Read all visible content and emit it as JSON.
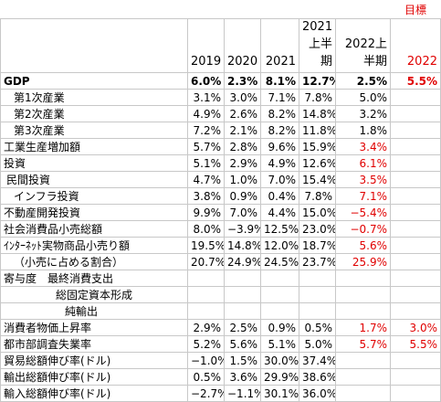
{
  "table": {
    "target_label": "目標",
    "columns": [
      "2019",
      "2020",
      "2021",
      "2021上半期",
      "2022上半期",
      "2022"
    ],
    "rows": [
      [
        "GDP",
        "6.0%",
        "2.3%",
        "8.1%",
        "12.7%",
        "2.5%",
        "5.5%"
      ],
      [
        "第1次産業",
        "3.1%",
        "3.0%",
        "7.1%",
        "7.8%",
        "5.0%",
        null
      ],
      [
        "第2次産業",
        "4.9%",
        "2.6%",
        "8.2%",
        "14.8%",
        "3.2%",
        null
      ],
      [
        "第3次産業",
        "7.2%",
        "2.1%",
        "8.2%",
        "11.8%",
        "1.8%",
        null
      ],
      [
        "工業生産増加額",
        "5.7%",
        "2.8%",
        "9.6%",
        "15.9%",
        "3.4%",
        null
      ],
      [
        "投資",
        "5.1%",
        "2.9%",
        "4.9%",
        "12.6%",
        "6.1%",
        null
      ],
      [
        "民間投資",
        "4.7%",
        "1.0%",
        "7.0%",
        "15.4%",
        "3.5%",
        null
      ],
      [
        "インフラ投資",
        "3.8%",
        "0.9%",
        "0.4%",
        "7.8%",
        "7.1%",
        null
      ],
      [
        "不動産開発投資",
        "9.9%",
        "7.0%",
        "4.4%",
        "15.0%",
        "−5.4%",
        null
      ],
      [
        "社会消費品小売総額",
        "8.0%",
        "−3.9%",
        "12.5%",
        "23.0%",
        "−0.7%",
        null
      ],
      [
        "ｲﾝﾀｰﾈｯﾄ実物商品小売り額",
        "19.5%",
        "14.8%",
        "12.0%",
        "18.7%",
        "5.6%",
        null
      ],
      [
        "（小売に占める割合）",
        "20.7%",
        "24.9%",
        "24.5%",
        "23.7%",
        "25.9%",
        null
      ],
      [
        "寄与度　最終消費支出",
        null,
        null,
        null,
        null,
        null,
        null
      ],
      [
        "総固定資本形成",
        null,
        null,
        null,
        null,
        null,
        null
      ],
      [
        "純輸出",
        null,
        null,
        null,
        null,
        null,
        null
      ],
      [
        "消費者物価上昇率",
        "2.9%",
        "2.5%",
        "0.9%",
        "0.5%",
        "1.7%",
        "3.0%"
      ],
      [
        "都市部調査失業率",
        "5.2%",
        "5.6%",
        "5.1%",
        "5.0%",
        "5.7%",
        "5.5%"
      ],
      [
        "貿易総額伸び率(ドル)",
        "−1.0%",
        "1.5%",
        "30.0%",
        "37.4%",
        null,
        null
      ],
      [
        "輸出総額伸び率(ドル)",
        "0.5%",
        "3.6%",
        "29.9%",
        "38.6%",
        null,
        null
      ],
      [
        "輸入総額伸び率(ドル)",
        "−2.7%",
        "−1.1%",
        "30.1%",
        "36.0%",
        null,
        null
      ]
    ]
  }
}
